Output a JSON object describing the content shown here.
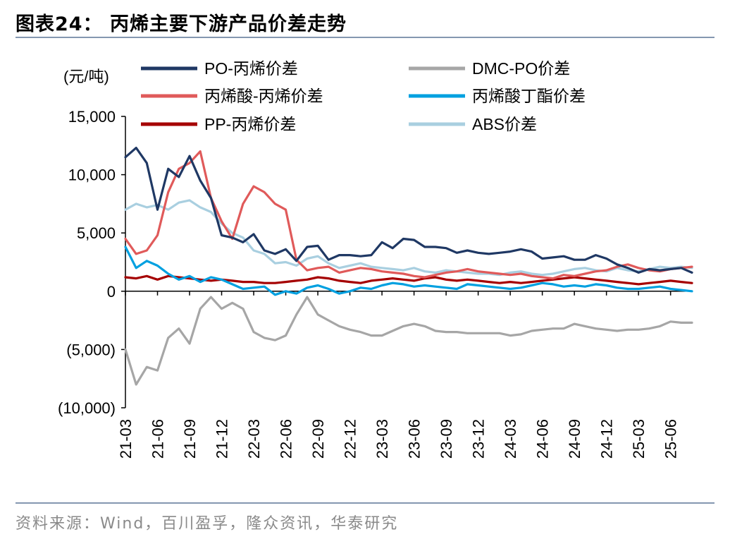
{
  "header": {
    "title": "图表24：  丙烯主要下游产品价差走势"
  },
  "footer": {
    "source": "资料来源：Wind，百川盈孚，隆众资讯，华泰研究"
  },
  "chart_data": {
    "type": "line",
    "unit_label": "(元/吨)",
    "ylim": [
      -10000,
      15000
    ],
    "yticks": [
      {
        "value": 15000,
        "label": "15,000"
      },
      {
        "value": 10000,
        "label": "10,000"
      },
      {
        "value": 5000,
        "label": "5,000"
      },
      {
        "value": 0,
        "label": "0"
      },
      {
        "value": -5000,
        "label": "(5,000)"
      },
      {
        "value": -10000,
        "label": "(10,000)"
      }
    ],
    "xlim": [
      "2021-03",
      "2025-08"
    ],
    "xticks": [
      "21-03",
      "21-06",
      "21-09",
      "21-12",
      "22-03",
      "22-06",
      "22-09",
      "22-12",
      "23-03",
      "23-06",
      "23-09",
      "23-12",
      "24-03",
      "24-06",
      "24-09",
      "24-12",
      "25-03",
      "25-06"
    ],
    "x": [
      "2021-03",
      "2021-04",
      "2021-05",
      "2021-06",
      "2021-07",
      "2021-08",
      "2021-09",
      "2021-10",
      "2021-11",
      "2021-12",
      "2022-01",
      "2022-02",
      "2022-03",
      "2022-04",
      "2022-05",
      "2022-06",
      "2022-07",
      "2022-08",
      "2022-09",
      "2022-10",
      "2022-11",
      "2022-12",
      "2023-01",
      "2023-02",
      "2023-03",
      "2023-04",
      "2023-05",
      "2023-06",
      "2023-07",
      "2023-08",
      "2023-09",
      "2023-10",
      "2023-11",
      "2023-12",
      "2024-01",
      "2024-02",
      "2024-03",
      "2024-04",
      "2024-05",
      "2024-06",
      "2024-07",
      "2024-08",
      "2024-09",
      "2024-10",
      "2024-11",
      "2024-12",
      "2025-01",
      "2025-02",
      "2025-03",
      "2025-04",
      "2025-05",
      "2025-06",
      "2025-07",
      "2025-08"
    ],
    "legend_placement": "top",
    "grid": false,
    "series": [
      {
        "name": "PO-丙烯价差",
        "color": "#1f3864",
        "values": [
          11500,
          12300,
          11000,
          7000,
          10500,
          9800,
          11600,
          9500,
          8000,
          4800,
          4600,
          4200,
          4900,
          3500,
          3200,
          3600,
          2600,
          3800,
          3900,
          2700,
          3100,
          3100,
          3000,
          3100,
          4200,
          3700,
          4500,
          4400,
          3800,
          3800,
          3700,
          3300,
          3500,
          3300,
          3200,
          3300,
          3400,
          3600,
          3400,
          2800,
          2900,
          3000,
          2700,
          2700,
          3100,
          2800,
          2300,
          2000,
          1600,
          1900,
          1800,
          1900,
          2000,
          1600
        ]
      },
      {
        "name": "DMC-PO价差",
        "color": "#a6a6a6",
        "values": [
          -5000,
          -8000,
          -6500,
          -6800,
          -4000,
          -3200,
          -4500,
          -1500,
          -500,
          -1500,
          -1000,
          -1500,
          -3500,
          -4000,
          -4200,
          -3800,
          -2000,
          -500,
          -2000,
          -2500,
          -3000,
          -3300,
          -3500,
          -3800,
          -3800,
          -3400,
          -3000,
          -2800,
          -3000,
          -3400,
          -3500,
          -3500,
          -3600,
          -3600,
          -3600,
          -3600,
          -3800,
          -3700,
          -3400,
          -3300,
          -3200,
          -3200,
          -2800,
          -3000,
          -3200,
          -3300,
          -3400,
          -3300,
          -3300,
          -3200,
          -3000,
          -2600,
          -2700,
          -2700
        ]
      },
      {
        "name": "丙烯酸-丙烯价差",
        "color": "#e05a5a",
        "values": [
          4500,
          3200,
          3500,
          4800,
          8500,
          10500,
          11000,
          12000,
          8000,
          6000,
          4500,
          7500,
          9000,
          8500,
          7500,
          7000,
          2700,
          1800,
          2000,
          2100,
          1600,
          1800,
          2000,
          1900,
          1700,
          1600,
          1500,
          1300,
          1200,
          1400,
          1600,
          1700,
          1900,
          1700,
          1600,
          1500,
          1400,
          1500,
          1300,
          1200,
          1100,
          1400,
          1300,
          1500,
          1700,
          1800,
          2100,
          2300,
          2000,
          1800,
          1700,
          1900,
          2000,
          2100
        ]
      },
      {
        "name": "丙烯酸丁酯价差",
        "color": "#00a0e0",
        "values": [
          3800,
          2000,
          2600,
          2200,
          1500,
          1000,
          1300,
          800,
          1200,
          1000,
          600,
          200,
          300,
          400,
          -300,
          0,
          -200,
          300,
          500,
          200,
          -200,
          0,
          300,
          200,
          500,
          700,
          600,
          400,
          500,
          400,
          300,
          200,
          600,
          500,
          400,
          300,
          200,
          300,
          500,
          700,
          600,
          400,
          500,
          400,
          600,
          500,
          300,
          200,
          200,
          300,
          400,
          200,
          100,
          0
        ]
      },
      {
        "name": "PP-丙烯价差",
        "color": "#a50000",
        "values": [
          1200,
          1100,
          1300,
          1000,
          1300,
          1200,
          1100,
          1000,
          900,
          1000,
          900,
          800,
          800,
          700,
          700,
          800,
          900,
          1000,
          1200,
          1100,
          900,
          800,
          700,
          900,
          1000,
          1100,
          1000,
          900,
          1100,
          1200,
          1000,
          900,
          1000,
          900,
          800,
          700,
          800,
          700,
          800,
          900,
          1000,
          1100,
          1200,
          1100,
          1000,
          900,
          800,
          700,
          600,
          700,
          800,
          900,
          800,
          700
        ]
      },
      {
        "name": "ABS价差",
        "color": "#a9cfe0",
        "values": [
          7000,
          7500,
          7200,
          7400,
          7000,
          7600,
          7800,
          7200,
          6800,
          5800,
          5000,
          4600,
          3500,
          3200,
          2400,
          2500,
          2200,
          2800,
          3000,
          2400,
          2000,
          2200,
          2400,
          2100,
          2000,
          1900,
          1800,
          2000,
          1700,
          1600,
          1800,
          1700,
          1600,
          1500,
          1500,
          1400,
          1600,
          1700,
          1500,
          1400,
          1500,
          1700,
          1900,
          2000,
          1800,
          1700,
          2000,
          1800,
          1700,
          1900,
          2100,
          2000,
          2100,
          2000
        ]
      }
    ]
  }
}
